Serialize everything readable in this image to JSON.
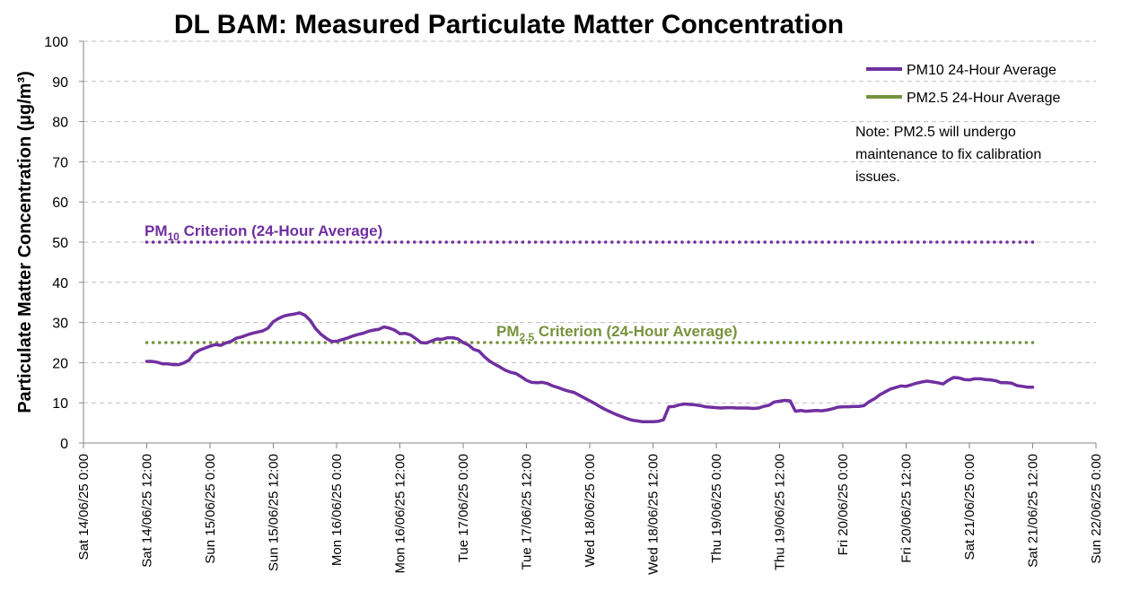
{
  "chart_data": {
    "type": "line",
    "title": "DL BAM: Measured Particulate Matter Concentration",
    "ylabel": "Particulate Matter Concentration (µg/m³)",
    "ylim": [
      0,
      100
    ],
    "yticks": [
      0,
      10,
      20,
      30,
      40,
      50,
      60,
      70,
      80,
      90,
      100
    ],
    "xlim_hours": [
      0,
      192
    ],
    "xticks": [
      {
        "h": 0,
        "label": "Sat 14/06/25 0:00"
      },
      {
        "h": 12,
        "label": "Sat 14/06/25 12:00"
      },
      {
        "h": 24,
        "label": "Sun 15/06/25 0:00"
      },
      {
        "h": 36,
        "label": "Sun 15/06/25 12:00"
      },
      {
        "h": 48,
        "label": "Mon 16/06/25 0:00"
      },
      {
        "h": 60,
        "label": "Mon 16/06/25 12:00"
      },
      {
        "h": 72,
        "label": "Tue 17/06/25 0:00"
      },
      {
        "h": 84,
        "label": "Tue 17/06/25 12:00"
      },
      {
        "h": 96,
        "label": "Wed 18/06/25 0:00"
      },
      {
        "h": 108,
        "label": "Wed 18/06/25 12:00"
      },
      {
        "h": 120,
        "label": "Thu 19/06/25 0:00"
      },
      {
        "h": 132,
        "label": "Thu 19/06/25 12:00"
      },
      {
        "h": 144,
        "label": "Fri 20/06/25 0:00"
      },
      {
        "h": 156,
        "label": "Fri 20/06/25 12:00"
      },
      {
        "h": 168,
        "label": "Sat 21/06/25 0:00"
      },
      {
        "h": 180,
        "label": "Sat 21/06/25 12:00"
      },
      {
        "h": 192,
        "label": "Sun 22/06/25 0:00"
      }
    ],
    "grid": true,
    "legend_position": "top-right",
    "series": [
      {
        "name": "PM10 24-Hour Average",
        "color": "#7030a0",
        "style": "solid",
        "points": [
          [
            12,
            20.3
          ],
          [
            13,
            20.3
          ],
          [
            14,
            20.1
          ],
          [
            15,
            19.7
          ],
          [
            16,
            19.7
          ],
          [
            17,
            19.5
          ],
          [
            18,
            19.5
          ],
          [
            19,
            19.9
          ],
          [
            20,
            20.6
          ],
          [
            21,
            22.3
          ],
          [
            22,
            23.1
          ],
          [
            23,
            23.6
          ],
          [
            24,
            24.1
          ],
          [
            25,
            24.5
          ],
          [
            26,
            24.3
          ],
          [
            27,
            24.9
          ],
          [
            28,
            25.3
          ],
          [
            29,
            26.1
          ],
          [
            30,
            26.4
          ],
          [
            31,
            26.9
          ],
          [
            32,
            27.3
          ],
          [
            33,
            27.6
          ],
          [
            34,
            27.9
          ],
          [
            35,
            28.6
          ],
          [
            36,
            30.2
          ],
          [
            37,
            31.0
          ],
          [
            38,
            31.6
          ],
          [
            39,
            31.9
          ],
          [
            40,
            32.1
          ],
          [
            41,
            32.4
          ],
          [
            42,
            31.8
          ],
          [
            43,
            30.5
          ],
          [
            44,
            28.5
          ],
          [
            45,
            27.1
          ],
          [
            46,
            26.1
          ],
          [
            47,
            25.3
          ],
          [
            48,
            25.3
          ],
          [
            49,
            25.7
          ],
          [
            50,
            26.1
          ],
          [
            51,
            26.6
          ],
          [
            52,
            27.0
          ],
          [
            53,
            27.3
          ],
          [
            54,
            27.8
          ],
          [
            55,
            28.1
          ],
          [
            56,
            28.3
          ],
          [
            57,
            28.9
          ],
          [
            58,
            28.6
          ],
          [
            59,
            28.1
          ],
          [
            60,
            27.2
          ],
          [
            61,
            27.3
          ],
          [
            62,
            26.9
          ],
          [
            63,
            26.0
          ],
          [
            64,
            25.0
          ],
          [
            65,
            24.9
          ],
          [
            66,
            25.4
          ],
          [
            67,
            25.9
          ],
          [
            68,
            25.8
          ],
          [
            69,
            26.2
          ],
          [
            70,
            26.2
          ],
          [
            71,
            25.9
          ],
          [
            72,
            25.0
          ],
          [
            73,
            24.4
          ],
          [
            74,
            23.3
          ],
          [
            75,
            22.9
          ],
          [
            76,
            21.5
          ],
          [
            77,
            20.4
          ],
          [
            78,
            19.6
          ],
          [
            79,
            18.9
          ],
          [
            80,
            18.1
          ],
          [
            81,
            17.6
          ],
          [
            82,
            17.3
          ],
          [
            83,
            16.5
          ],
          [
            84,
            15.6
          ],
          [
            85,
            15.1
          ],
          [
            86,
            15.0
          ],
          [
            87,
            15.1
          ],
          [
            88,
            14.8
          ],
          [
            89,
            14.2
          ],
          [
            90,
            13.8
          ],
          [
            91,
            13.3
          ],
          [
            92,
            12.9
          ],
          [
            93,
            12.6
          ],
          [
            94,
            11.9
          ],
          [
            95,
            11.2
          ],
          [
            96,
            10.5
          ],
          [
            97,
            9.8
          ],
          [
            98,
            9.0
          ],
          [
            99,
            8.3
          ],
          [
            100,
            7.7
          ],
          [
            101,
            7.1
          ],
          [
            102,
            6.6
          ],
          [
            103,
            6.1
          ],
          [
            104,
            5.7
          ],
          [
            105,
            5.5
          ],
          [
            106,
            5.3
          ],
          [
            107,
            5.3
          ],
          [
            108,
            5.3
          ],
          [
            109,
            5.4
          ],
          [
            110,
            5.8
          ],
          [
            111,
            9.0
          ],
          [
            112,
            9.1
          ],
          [
            113,
            9.5
          ],
          [
            114,
            9.7
          ],
          [
            115,
            9.6
          ],
          [
            116,
            9.5
          ],
          [
            117,
            9.3
          ],
          [
            118,
            9.0
          ],
          [
            119,
            8.9
          ],
          [
            120,
            8.8
          ],
          [
            121,
            8.7
          ],
          [
            122,
            8.8
          ],
          [
            123,
            8.8
          ],
          [
            124,
            8.7
          ],
          [
            125,
            8.7
          ],
          [
            126,
            8.7
          ],
          [
            127,
            8.6
          ],
          [
            128,
            8.7
          ],
          [
            129,
            9.1
          ],
          [
            130,
            9.4
          ],
          [
            131,
            10.2
          ],
          [
            132,
            10.4
          ],
          [
            133,
            10.6
          ],
          [
            134,
            10.5
          ],
          [
            135,
            7.9
          ],
          [
            136,
            8.1
          ],
          [
            137,
            7.9
          ],
          [
            138,
            8.0
          ],
          [
            139,
            8.1
          ],
          [
            140,
            8.0
          ],
          [
            141,
            8.2
          ],
          [
            142,
            8.5
          ],
          [
            143,
            8.9
          ],
          [
            144,
            9.0
          ],
          [
            145,
            9.0
          ],
          [
            146,
            9.1
          ],
          [
            147,
            9.1
          ],
          [
            148,
            9.3
          ],
          [
            149,
            10.3
          ],
          [
            150,
            11.0
          ],
          [
            151,
            12.0
          ],
          [
            152,
            12.7
          ],
          [
            153,
            13.4
          ],
          [
            154,
            13.8
          ],
          [
            155,
            14.2
          ],
          [
            156,
            14.1
          ],
          [
            157,
            14.5
          ],
          [
            158,
            14.9
          ],
          [
            159,
            15.2
          ],
          [
            160,
            15.4
          ],
          [
            161,
            15.2
          ],
          [
            162,
            15.0
          ],
          [
            163,
            14.7
          ],
          [
            164,
            15.6
          ],
          [
            165,
            16.3
          ],
          [
            166,
            16.2
          ],
          [
            167,
            15.8
          ],
          [
            168,
            15.7
          ],
          [
            169,
            16.0
          ],
          [
            170,
            16.0
          ],
          [
            171,
            15.8
          ],
          [
            172,
            15.7
          ],
          [
            173,
            15.5
          ],
          [
            174,
            15.0
          ],
          [
            175,
            15.0
          ],
          [
            176,
            14.9
          ],
          [
            177,
            14.3
          ],
          [
            178,
            14.1
          ],
          [
            179,
            13.9
          ],
          [
            180,
            13.9
          ]
        ]
      },
      {
        "name": "PM2.5 24-Hour Average",
        "color": "#77933c",
        "style": "solid",
        "points": []
      }
    ],
    "criteria": [
      {
        "label_main": "PM",
        "label_sub": "10",
        "label_rest": " Criterion (24-Hour Average)",
        "value": 50,
        "x_start_h": 12,
        "x_end_h": 180,
        "color": "#7030a0",
        "style": "dotted"
      },
      {
        "label_main": "PM",
        "label_sub": "2.5",
        "label_rest": " Criterion (24-Hour Average)",
        "value": 25,
        "x_start_h": 12,
        "x_end_h": 180,
        "color": "#77933c",
        "style": "dotted"
      }
    ],
    "note": [
      "Note: PM2.5 will undergo",
      "maintenance to fix calibration",
      "issues."
    ]
  }
}
